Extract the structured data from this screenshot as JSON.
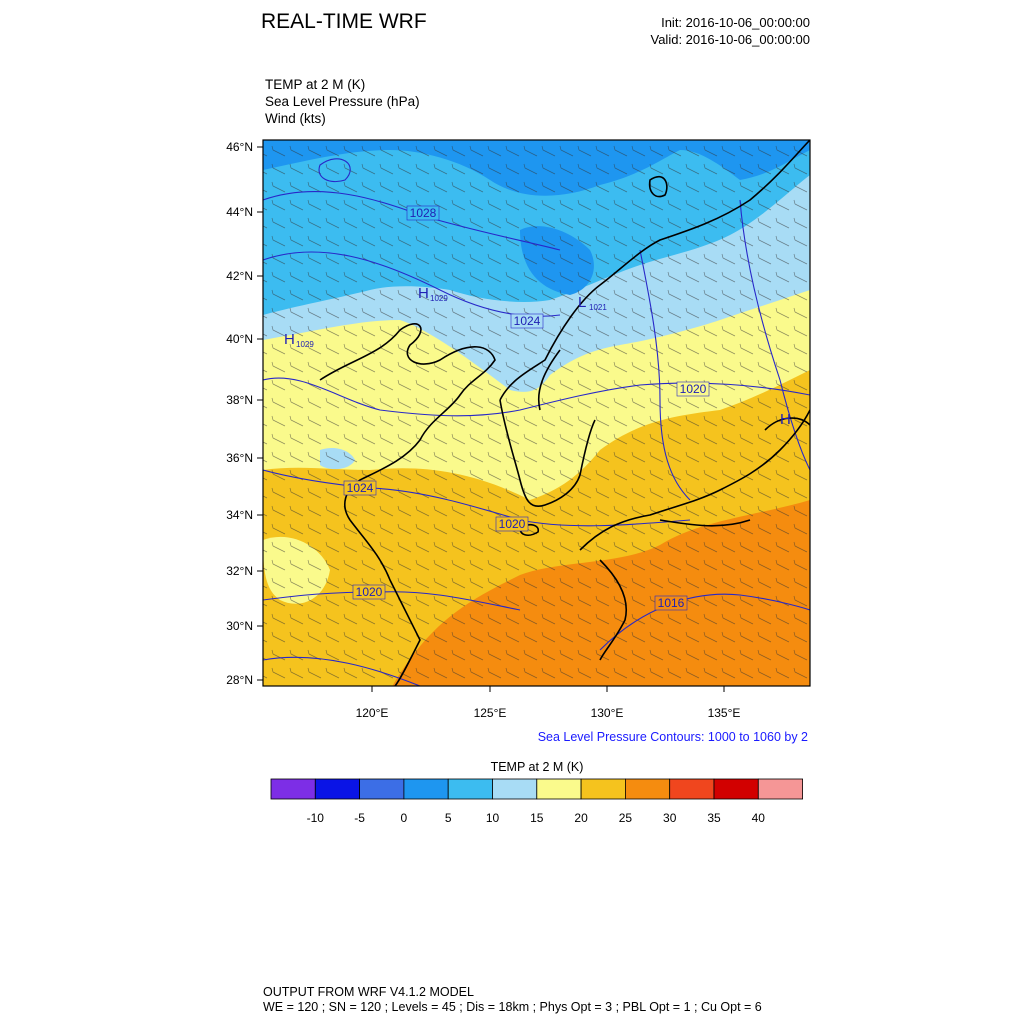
{
  "header": {
    "title": "REAL-TIME WRF",
    "init": "Init: 2016-10-06_00:00:00",
    "valid": "Valid: 2016-10-06_00:00:00"
  },
  "fields": {
    "temp": "TEMP at 2 M   (K)",
    "slp": "Sea Level Pressure   (hPa)",
    "wind": "Wind   (kts)"
  },
  "map": {
    "lat_labels": [
      "46°N",
      "44°N",
      "42°N",
      "40°N",
      "38°N",
      "36°N",
      "34°N",
      "32°N",
      "30°N",
      "28°N"
    ],
    "lon_labels": [
      "120°E",
      "125°E",
      "130°E",
      "135°E"
    ],
    "isobar_labels": [
      "1028",
      "1024",
      "1020",
      "1024",
      "1020",
      "1020",
      "1016"
    ],
    "high_labels": [
      "H",
      "H",
      "H"
    ],
    "high_values": [
      "1029",
      "1029",
      ""
    ],
    "low_label": "L",
    "low_value": "1021"
  },
  "slp_note": "Sea Level Pressure Contours: 1000 to 1060 by 2",
  "colorbar": {
    "title": "TEMP at 2 M   (K)",
    "colors": [
      "#7d2ee6",
      "#0a14e6",
      "#3c6ee6",
      "#1e96f0",
      "#3cbcf0",
      "#a8dcf5",
      "#fafa8c",
      "#f5c31e",
      "#f58c0f",
      "#f0461e",
      "#d20000",
      "#f59696"
    ],
    "labels": [
      "-10",
      "-5",
      "0",
      "5",
      "10",
      "15",
      "20",
      "25",
      "30",
      "35",
      "40"
    ]
  },
  "footer": {
    "line1": "OUTPUT FROM WRF V4.1.2 MODEL",
    "line2": "WE = 120 ; SN = 120 ; Levels = 45 ; Dis = 18km ; Phys Opt = 3 ; PBL Opt = 1 ; Cu Opt = 6"
  }
}
